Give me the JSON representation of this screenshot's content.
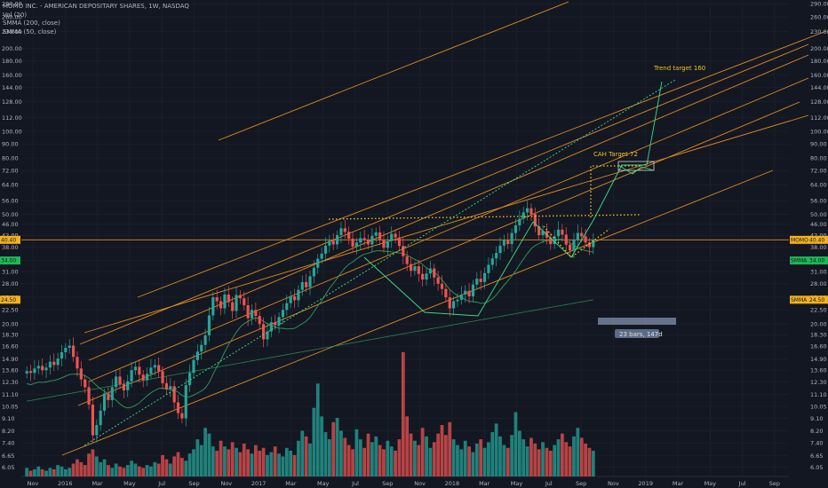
{
  "legend": {
    "title": "MOMO INC. - AMERICAN DEPOSITARY SHARES, 1W, NASDAQ",
    "vol": "Vol (20)",
    "smma200": "SMMA (200, close)",
    "smma50": "SMMA (50, close)"
  },
  "annotations": {
    "trend_target": "Trend target 160",
    "cah_target": "CAH Target 72",
    "range_label": "23 bars, 147d"
  },
  "badges": {
    "price": "MOMO",
    "smma50": "SMMA",
    "smma200": "SMMA"
  },
  "colors": {
    "background": "#131722",
    "up": "#26a69a",
    "down": "#ef5350",
    "channel": "#e08a1e",
    "pattern": "#3ddc84",
    "dotted": "#f5c518",
    "smma": "#2e9e5a",
    "badge_price": "#f5b21b",
    "badge_green": "#1db954"
  },
  "chart_data": {
    "type": "candlestick",
    "scale": "log",
    "ylim": [
      5.6,
      295
    ],
    "y_ticks": [
      6.05,
      6.65,
      7.4,
      8.2,
      9.1,
      10.05,
      11.1,
      12.3,
      13.6,
      14.9,
      16.6,
      18.3,
      20.0,
      22.5,
      25.0,
      28.0,
      31.0,
      34.0,
      38.0,
      42.0,
      46.0,
      50.0,
      56.0,
      64.0,
      72.0,
      80.0,
      90.0,
      100.0,
      112.0,
      128.0,
      144.0,
      160.0,
      180.0,
      200.0,
      230.0,
      260.0,
      290.0
    ],
    "y_tick_labels": [
      "6.05",
      "6.65",
      "7.40",
      "8.20",
      "9.10",
      "10.05",
      "11.10",
      "12.30",
      "13.60",
      "14.90",
      "16.60",
      "18.30",
      "20.00",
      "22.50",
      "25.00",
      "28.00",
      "31.00",
      "34.00",
      "38.00",
      "42.00",
      "46.00",
      "50.00",
      "56.00",
      "64.00",
      "72.00",
      "80.00",
      "90.00",
      "100.00",
      "112.00",
      "128.00",
      "144.00",
      "160.00",
      "180.00",
      "200.00",
      "230.00",
      "260.00",
      "290.00"
    ],
    "x_labels": [
      "Nov",
      "2016",
      "Mar",
      "May",
      "Jul",
      "Sep",
      "Nov",
      "2017",
      "Mar",
      "May",
      "Jul",
      "Sep",
      "Nov",
      "2018",
      "Mar",
      "May",
      "Jul",
      "Sep",
      "Nov",
      "2019",
      "Mar",
      "May",
      "Jul",
      "Sep"
    ],
    "price_last": 40.4,
    "smma50_last": 34.0,
    "smma200_last": 24.5,
    "price_badge_value": "40.40",
    "smma50_badge_value": "34.00",
    "smma200_badge_value": "24.50",
    "close_series": [
      13.5,
      13.3,
      13.8,
      14.1,
      13.6,
      13.9,
      14.6,
      14.2,
      15.0,
      15.8,
      16.4,
      16.7,
      15.2,
      13.8,
      12.6,
      11.8,
      10.2,
      7.9,
      8.6,
      9.7,
      11.2,
      10.6,
      11.8,
      12.9,
      12.1,
      11.5,
      12.4,
      13.6,
      14.0,
      13.1,
      12.5,
      13.2,
      13.9,
      14.2,
      13.5,
      12.2,
      11.6,
      11.9,
      10.4,
      9.5,
      9.1,
      12.0,
      13.3,
      14.8,
      15.9,
      16.8,
      18.2,
      21.5,
      25.0,
      24.2,
      22.8,
      25.6,
      24.0,
      22.3,
      25.5,
      24.8,
      23.4,
      21.0,
      22.5,
      21.4,
      20.0,
      17.6,
      18.8,
      20.3,
      19.8,
      21.2,
      22.5,
      23.8,
      25.2,
      24.4,
      26.6,
      28.4,
      27.2,
      29.8,
      32.0,
      34.5,
      36.0,
      38.5,
      40.1,
      38.9,
      42.0,
      44.5,
      43.2,
      40.8,
      38.2,
      39.5,
      41.0,
      40.3,
      38.9,
      41.8,
      43.0,
      40.5,
      37.8,
      40.0,
      42.5,
      41.2,
      38.4,
      35.2,
      33.0,
      31.2,
      32.4,
      30.4,
      29.0,
      30.5,
      31.8,
      29.5,
      28.0,
      26.8,
      25.0,
      22.8,
      24.2,
      24.5,
      25.6,
      26.4,
      25.2,
      27.8,
      29.2,
      28.4,
      30.6,
      32.8,
      34.6,
      36.2,
      38.5,
      40.2,
      39.0,
      42.8,
      45.6,
      48.2,
      50.8,
      52.6,
      50.1,
      45.2,
      42.0,
      43.5,
      41.2,
      39.0,
      41.6,
      44.0,
      42.2,
      38.8,
      37.0,
      40.5,
      42.8,
      41.6,
      39.5,
      38.0,
      40.4
    ],
    "volume_series": [
      0.6,
      0.4,
      0.5,
      0.7,
      0.5,
      0.4,
      0.6,
      0.5,
      0.8,
      0.7,
      0.5,
      0.6,
      0.9,
      1.2,
      1.0,
      0.8,
      1.6,
      1.9,
      1.4,
      1.0,
      1.2,
      0.8,
      0.6,
      0.9,
      0.7,
      0.6,
      0.8,
      1.1,
      0.9,
      0.7,
      0.6,
      0.8,
      0.7,
      1.0,
      0.9,
      1.5,
      1.2,
      0.9,
      1.4,
      1.7,
      1.3,
      1.1,
      1.6,
      1.9,
      2.6,
      2.2,
      3.4,
      3.0,
      2.1,
      1.8,
      2.5,
      2.1,
      1.9,
      2.4,
      2.0,
      1.7,
      2.3,
      1.9,
      1.6,
      2.2,
      1.8,
      2.0,
      1.5,
      1.7,
      2.1,
      1.6,
      1.4,
      2.0,
      1.8,
      1.5,
      2.5,
      3.2,
      2.8,
      2.3,
      4.8,
      6.5,
      4.2,
      3.1,
      2.6,
      3.8,
      4.1,
      3.2,
      2.7,
      2.2,
      1.9,
      3.3,
      2.6,
      2.0,
      3.0,
      2.4,
      2.8,
      2.2,
      1.9,
      2.5,
      2.1,
      1.8,
      2.6,
      8.7,
      4.2,
      3.0,
      2.5,
      2.2,
      3.4,
      2.8,
      2.0,
      2.4,
      3.0,
      3.6,
      2.9,
      3.8,
      2.6,
      2.2,
      1.9,
      2.5,
      2.1,
      1.7,
      2.3,
      2.6,
      2.0,
      2.4,
      3.1,
      3.7,
      2.8,
      2.2,
      2.0,
      2.9,
      4.5,
      3.2,
      2.6,
      2.1,
      2.7,
      2.3,
      1.9,
      2.4,
      2.0,
      1.8,
      2.2,
      2.6,
      3.0,
      2.4,
      2.1,
      2.8,
      3.4,
      2.7,
      2.3,
      2.0,
      1.8
    ]
  }
}
